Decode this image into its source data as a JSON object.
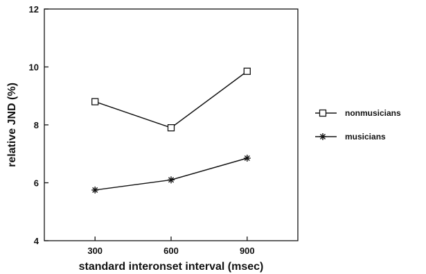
{
  "chart_data": {
    "type": "line",
    "title": "",
    "xlabel": "standard interonset interval (msec)",
    "ylabel": "relative JND (%)",
    "x": [
      300,
      600,
      900
    ],
    "xlim": [
      100,
      1100
    ],
    "ylim": [
      4,
      12
    ],
    "xticks": [
      "300",
      "600",
      "900"
    ],
    "yticks": [
      "4",
      "6",
      "8",
      "10",
      "12"
    ],
    "grid": false,
    "legend_position": "right",
    "series": [
      {
        "name": "nonmusicians",
        "marker": "square",
        "values": [
          8.8,
          7.9,
          9.85
        ]
      },
      {
        "name": "musicians",
        "marker": "asterisk",
        "values": [
          5.75,
          6.1,
          6.85
        ]
      }
    ]
  }
}
